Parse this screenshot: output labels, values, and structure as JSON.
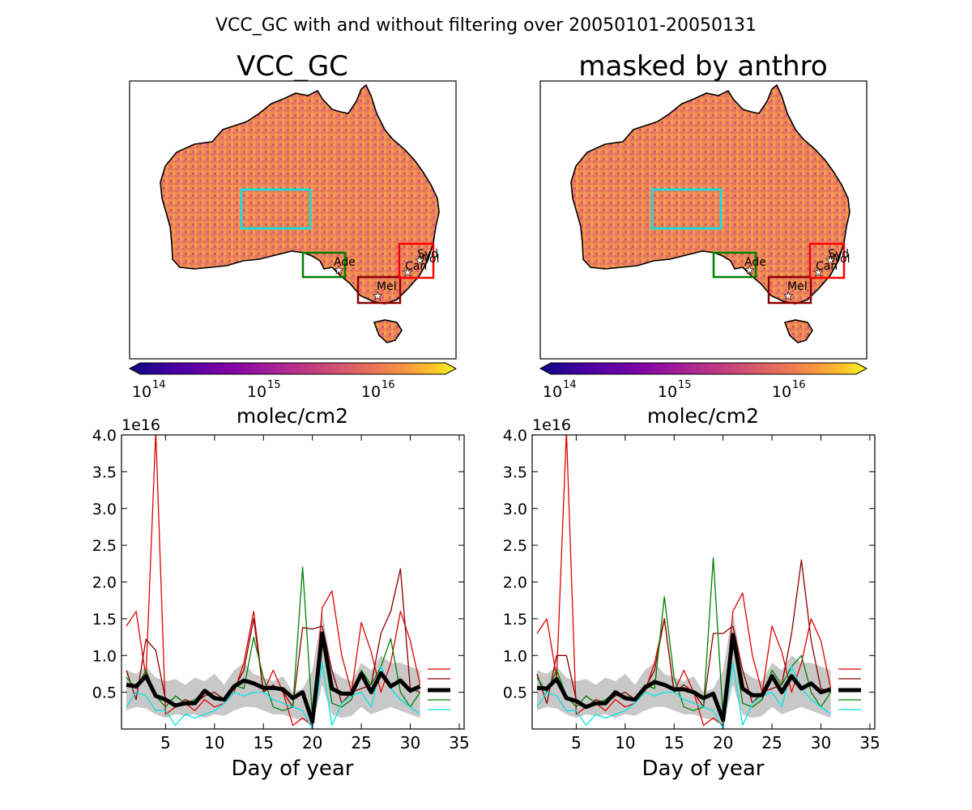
{
  "figure": {
    "suptitle": "VCC_GC with and without filtering over 20050101-20050131"
  },
  "maps": [
    {
      "title": "VCC_GC"
    },
    {
      "title": "masked by anthro"
    }
  ],
  "colorbar": {
    "colormap": "plasma",
    "scale": "log",
    "range": [
      100000000000000.0,
      5e+16
    ],
    "ticks": [
      "10",
      "10",
      "10"
    ],
    "tick_exponents": [
      "14",
      "15",
      "16"
    ],
    "unit": "molec/cm2"
  },
  "regions": [
    {
      "color": "#00e5e5"
    },
    {
      "color": "#008000"
    },
    {
      "color": "#8b0000"
    },
    {
      "color": "#ff0000"
    }
  ],
  "cities": [
    "Ade",
    "Mel",
    "Can",
    "Syd",
    "Wol"
  ],
  "colors": {
    "cyan": "#00e5e5",
    "green": "#008000",
    "darkred": "#8b0000",
    "red": "#e00000",
    "mean": "#000000",
    "band": "#c8c8c8",
    "land": "#f08457"
  },
  "chart_data": [
    {
      "type": "line",
      "xlabel": "Day of year",
      "ylabel": "",
      "offset_text": "1e16",
      "xlim": [
        0.5,
        35.5
      ],
      "ylim": [
        0,
        4.0
      ],
      "xticks": [
        "5",
        "10",
        "15",
        "20",
        "25",
        "30",
        "35"
      ],
      "yticks": [
        "0.5",
        "1.0",
        "1.5",
        "2.0",
        "2.5",
        "3.0",
        "3.5",
        "4.0"
      ],
      "x": [
        1,
        2,
        3,
        4,
        5,
        6,
        7,
        8,
        9,
        10,
        11,
        12,
        13,
        14,
        15,
        16,
        17,
        18,
        19,
        20,
        21,
        22,
        23,
        24,
        25,
        26,
        27,
        28,
        29,
        30,
        31
      ],
      "band_upper": [
        0.8,
        0.75,
        0.85,
        0.7,
        0.65,
        0.68,
        0.6,
        0.7,
        0.65,
        0.75,
        0.6,
        0.8,
        0.9,
        0.75,
        0.7,
        0.65,
        0.72,
        0.5,
        0.55,
        0.8,
        1.6,
        0.8,
        0.7,
        0.65,
        0.9,
        0.8,
        1.0,
        0.9,
        0.9,
        0.85,
        0.8
      ],
      "band_lower": [
        0.25,
        0.3,
        0.28,
        0.2,
        0.15,
        0.2,
        0.18,
        0.2,
        0.15,
        0.2,
        0.18,
        0.25,
        0.3,
        0.3,
        0.25,
        0.2,
        0.2,
        0.15,
        0.12,
        0.05,
        0.6,
        0.2,
        0.15,
        0.18,
        0.3,
        0.2,
        0.25,
        0.3,
        0.25,
        0.2,
        0.15
      ],
      "series": [
        {
          "color": "red",
          "values": [
            1.4,
            1.6,
            0.7,
            4.2,
            0.2,
            0.3,
            0.35,
            0.25,
            0.4,
            0.3,
            0.35,
            0.5,
            0.9,
            1.6,
            0.5,
            0.8,
            0.5,
            0.05,
            0.15,
            0.05,
            1.65,
            1.88,
            1.0,
            0.5,
            1.45,
            1.05,
            0.5,
            0.9,
            1.6,
            1.2,
            0.6
          ]
        },
        {
          "color": "darkred",
          "values": [
            0.8,
            0.4,
            1.22,
            1.07,
            0.4,
            0.3,
            0.4,
            0.35,
            0.45,
            0.5,
            0.4,
            0.55,
            0.8,
            1.5,
            0.5,
            0.6,
            0.5,
            0.3,
            1.38,
            1.36,
            1.4,
            0.8,
            0.35,
            0.5,
            0.55,
            0.6,
            1.3,
            1.6,
            2.18,
            0.55,
            0.5
          ]
        },
        {
          "color": "green",
          "values": [
            0.7,
            0.55,
            0.8,
            0.45,
            0.3,
            0.45,
            0.35,
            0.4,
            0.5,
            0.45,
            0.4,
            0.6,
            0.55,
            1.25,
            0.7,
            0.3,
            0.25,
            0.3,
            2.2,
            0.15,
            1.22,
            0.35,
            0.3,
            0.4,
            0.8,
            0.6,
            0.85,
            1.23,
            0.5,
            0.3,
            0.5
          ]
        },
        {
          "color": "cyan",
          "values": [
            0.3,
            0.5,
            0.45,
            0.25,
            0.25,
            0.05,
            0.2,
            0.15,
            0.2,
            0.25,
            0.35,
            0.5,
            0.45,
            0.5,
            0.5,
            0.4,
            0.35,
            0.3,
            0.25,
            -0.1,
            0.9,
            0.05,
            0.35,
            0.45,
            0.5,
            0.3,
            0.85,
            0.55,
            0.4,
            0.3,
            0.2
          ]
        },
        {
          "color": "mean",
          "values": [
            0.6,
            0.58,
            0.72,
            0.45,
            0.4,
            0.32,
            0.35,
            0.35,
            0.52,
            0.42,
            0.4,
            0.58,
            0.66,
            0.62,
            0.56,
            0.56,
            0.54,
            0.42,
            0.5,
            0.1,
            1.3,
            0.55,
            0.48,
            0.48,
            0.75,
            0.5,
            0.76,
            0.58,
            0.66,
            0.52,
            0.58
          ]
        }
      ]
    },
    {
      "type": "line",
      "xlabel": "Day of year",
      "ylabel": "",
      "offset_text": "1e16",
      "xlim": [
        0.5,
        35.5
      ],
      "ylim": [
        0,
        4.0
      ],
      "xticks": [
        "5",
        "10",
        "15",
        "20",
        "25",
        "30",
        "35"
      ],
      "yticks": [
        "0.5",
        "1.0",
        "1.5",
        "2.0",
        "2.5",
        "3.0",
        "3.5",
        "4.0"
      ],
      "x": [
        1,
        2,
        3,
        4,
        5,
        6,
        7,
        8,
        9,
        10,
        11,
        12,
        13,
        14,
        15,
        16,
        17,
        18,
        19,
        20,
        21,
        22,
        23,
        24,
        25,
        26,
        27,
        28,
        29,
        30,
        31
      ],
      "band_upper": [
        0.8,
        0.75,
        0.85,
        0.7,
        0.65,
        0.68,
        0.6,
        0.7,
        0.65,
        0.75,
        0.6,
        0.8,
        0.9,
        0.75,
        0.7,
        0.65,
        0.72,
        0.5,
        0.55,
        0.8,
        1.6,
        0.8,
        0.7,
        0.65,
        0.9,
        0.8,
        1.0,
        0.9,
        0.9,
        0.85,
        0.8
      ],
      "band_lower": [
        0.25,
        0.3,
        0.28,
        0.2,
        0.15,
        0.2,
        0.18,
        0.2,
        0.15,
        0.2,
        0.18,
        0.25,
        0.3,
        0.3,
        0.25,
        0.2,
        0.2,
        0.15,
        0.12,
        0.05,
        0.6,
        0.2,
        0.15,
        0.18,
        0.3,
        0.2,
        0.25,
        0.3,
        0.25,
        0.2,
        0.15
      ],
      "series": [
        {
          "color": "red",
          "values": [
            1.3,
            1.5,
            0.7,
            4.2,
            0.2,
            0.3,
            0.35,
            0.25,
            0.4,
            0.3,
            0.35,
            0.5,
            0.9,
            1.5,
            0.5,
            0.8,
            0.5,
            0.05,
            0.15,
            0.05,
            1.6,
            1.85,
            1.0,
            0.5,
            1.4,
            1.05,
            0.5,
            0.9,
            1.5,
            1.2,
            0.55
          ]
        },
        {
          "color": "darkred",
          "values": [
            0.75,
            0.35,
            1.0,
            1.0,
            0.4,
            0.3,
            0.4,
            0.35,
            0.45,
            0.5,
            0.4,
            0.55,
            0.8,
            1.5,
            0.5,
            0.6,
            0.5,
            0.3,
            1.3,
            1.3,
            1.4,
            0.8,
            0.35,
            0.5,
            0.55,
            0.6,
            1.3,
            2.3,
            1.2,
            0.55,
            0.5
          ]
        },
        {
          "color": "green",
          "values": [
            0.7,
            0.5,
            0.8,
            0.45,
            0.3,
            0.45,
            0.35,
            0.4,
            0.5,
            0.45,
            0.4,
            0.6,
            0.55,
            1.8,
            0.7,
            0.3,
            0.25,
            0.3,
            2.33,
            0.15,
            1.2,
            0.35,
            0.3,
            0.4,
            0.8,
            0.6,
            0.85,
            1.0,
            0.5,
            0.3,
            0.5
          ]
        },
        {
          "color": "cyan",
          "values": [
            0.3,
            0.5,
            0.45,
            0.25,
            0.25,
            0.05,
            0.2,
            0.15,
            0.2,
            0.25,
            0.35,
            0.5,
            0.45,
            0.5,
            0.5,
            0.4,
            0.35,
            0.3,
            0.25,
            -0.1,
            0.9,
            0.05,
            0.35,
            0.45,
            0.5,
            0.3,
            0.85,
            0.55,
            0.4,
            0.3,
            0.2
          ]
        },
        {
          "color": "mean",
          "values": [
            0.56,
            0.55,
            0.68,
            0.42,
            0.38,
            0.3,
            0.35,
            0.35,
            0.5,
            0.42,
            0.4,
            0.56,
            0.64,
            0.6,
            0.54,
            0.54,
            0.5,
            0.42,
            0.48,
            0.12,
            1.28,
            0.55,
            0.46,
            0.46,
            0.72,
            0.5,
            0.72,
            0.55,
            0.62,
            0.5,
            0.54
          ]
        }
      ]
    }
  ]
}
